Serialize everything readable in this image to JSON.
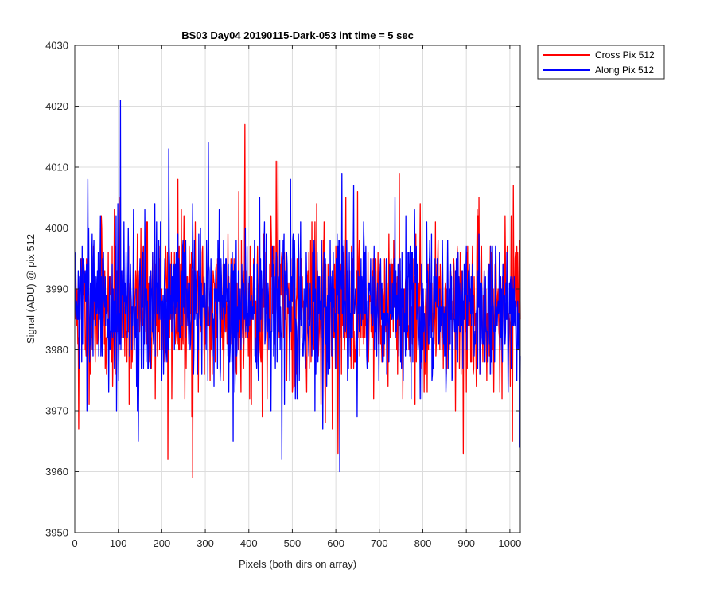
{
  "chart_data": {
    "type": "line",
    "title": "BS03 Day04 20190115-Dark-053 int time = 5 sec",
    "xlabel": "Pixels (both dirs on array)",
    "ylabel": "Signal (ADU) @ pix 512",
    "xlim": [
      0,
      1024
    ],
    "ylim": [
      3950,
      4030
    ],
    "xticks": [
      0,
      100,
      200,
      300,
      400,
      500,
      600,
      700,
      800,
      900,
      1000
    ],
    "yticks": [
      3950,
      3960,
      3970,
      3980,
      3990,
      4000,
      4010,
      4020,
      4030
    ],
    "grid": true,
    "legend_position": "outside top-right",
    "n_points": 1024,
    "noise": {
      "mean": 3987,
      "std": 6.5,
      "min": 3955,
      "max": 4022
    },
    "series": [
      {
        "name": "Cross Pix 512",
        "color": "#ff0000",
        "seed": 11,
        "spikes": [
          {
            "x": 8,
            "y": 3967
          },
          {
            "x": 213,
            "y": 3962
          },
          {
            "x": 270,
            "y": 3959
          },
          {
            "x": 236,
            "y": 4008
          },
          {
            "x": 376,
            "y": 4006
          },
          {
            "x": 390,
            "y": 4017
          },
          {
            "x": 462,
            "y": 4011
          },
          {
            "x": 466,
            "y": 4011
          },
          {
            "x": 575,
            "y": 3968
          },
          {
            "x": 604,
            "y": 3963
          },
          {
            "x": 745,
            "y": 4009
          },
          {
            "x": 892,
            "y": 3963
          },
          {
            "x": 1005,
            "y": 3965
          }
        ]
      },
      {
        "name": "Along Pix 512",
        "color": "#0000ff",
        "seed": 29,
        "spikes": [
          {
            "x": 104,
            "y": 4021
          },
          {
            "x": 215,
            "y": 4013
          },
          {
            "x": 306,
            "y": 4014
          },
          {
            "x": 29,
            "y": 4008
          },
          {
            "x": 145,
            "y": 3965
          },
          {
            "x": 363,
            "y": 3965
          },
          {
            "x": 475,
            "y": 3962
          },
          {
            "x": 608,
            "y": 3960
          },
          {
            "x": 1022,
            "y": 3964
          },
          {
            "x": 640,
            "y": 4007
          },
          {
            "x": 735,
            "y": 4005
          }
        ]
      }
    ]
  }
}
